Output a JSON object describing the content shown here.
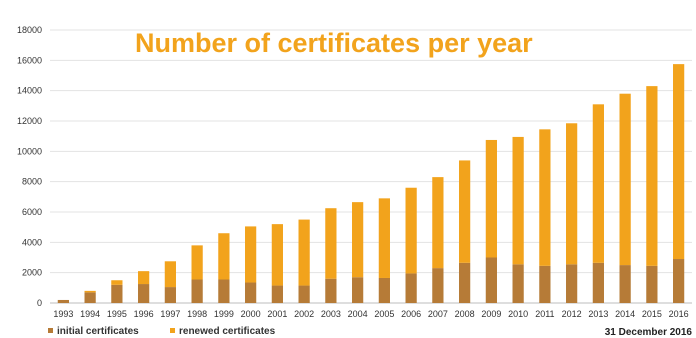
{
  "chart_data": {
    "type": "bar",
    "stacked": true,
    "title": "Number of certificates per year",
    "footnote": "31 December 2016",
    "ylim": [
      0,
      18000
    ],
    "yticks": [
      0,
      2000,
      4000,
      6000,
      8000,
      10000,
      12000,
      14000,
      16000,
      18000
    ],
    "grid": true,
    "legend_position": "bottom-left",
    "categories": [
      "1993",
      "1994",
      "1995",
      "1996",
      "1997",
      "1998",
      "1999",
      "2000",
      "2001",
      "2002",
      "2003",
      "2004",
      "2005",
      "2006",
      "2007",
      "2008",
      "2009",
      "2010",
      "2011",
      "2012",
      "2013",
      "2014",
      "2015",
      "2016"
    ],
    "series": [
      {
        "name": "initial certificates",
        "color": "#b67b37",
        "values": [
          200,
          700,
          1200,
          1250,
          1050,
          1550,
          1550,
          1350,
          1150,
          1150,
          1600,
          1700,
          1650,
          1950,
          2300,
          2650,
          3000,
          2550,
          2450,
          2550,
          2650,
          2500,
          2450,
          2900
        ]
      },
      {
        "name": "renewed certificates",
        "color": "#f2a31c",
        "values": [
          0,
          100,
          300,
          850,
          1700,
          2250,
          3050,
          3700,
          4050,
          4350,
          4650,
          4950,
          5250,
          5650,
          6000,
          6750,
          7750,
          8400,
          9000,
          9300,
          10450,
          11300,
          11850,
          12850
        ]
      }
    ],
    "title_color": "#f2a31c"
  }
}
